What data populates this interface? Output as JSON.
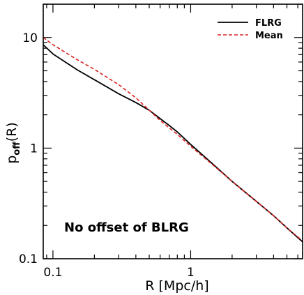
{
  "chart_data": {
    "type": "line",
    "xlabel": "R [Mpc/h]",
    "ylabel_main": "p",
    "ylabel_sub": "off",
    "ylabel_tail": "(R)",
    "xscale": "log",
    "yscale": "log",
    "xlim": [
      0.085,
      6.5
    ],
    "ylim": [
      0.1,
      20
    ],
    "x_ticks": [
      {
        "value": 0.1,
        "label": "0.1"
      },
      {
        "value": 1,
        "label": "1"
      }
    ],
    "y_ticks": [
      {
        "value": 0.1,
        "label": "0.1"
      },
      {
        "value": 1,
        "label": "1"
      },
      {
        "value": 10,
        "label": "10"
      }
    ],
    "annotation": "No offset of BLRG",
    "legend_position": "top-right",
    "series": [
      {
        "name": "FLRG",
        "style": "solid",
        "color": "#000000",
        "x": [
          0.085,
          0.1,
          0.15,
          0.2,
          0.3,
          0.4,
          0.5,
          0.6,
          0.7,
          0.8,
          1.0,
          1.5,
          2.0,
          3.0,
          4.0,
          5.0,
          6.5
        ],
        "y": [
          8.6,
          7.1,
          5.1,
          4.15,
          3.1,
          2.58,
          2.2,
          1.85,
          1.6,
          1.4,
          1.08,
          0.69,
          0.5,
          0.33,
          0.245,
          0.19,
          0.142
        ]
      },
      {
        "name": "Mean",
        "style": "dashed",
        "color": "#dd2222",
        "x": [
          0.085,
          0.1,
          0.15,
          0.2,
          0.3,
          0.4,
          0.5,
          0.6,
          0.7,
          0.8,
          1.0,
          1.5,
          2.0,
          3.0,
          4.0,
          5.0,
          6.5
        ],
        "y": [
          10.0,
          8.6,
          6.3,
          5.15,
          3.75,
          2.85,
          2.2,
          1.78,
          1.52,
          1.33,
          1.04,
          0.68,
          0.5,
          0.33,
          0.245,
          0.19,
          0.145
        ]
      }
    ]
  }
}
